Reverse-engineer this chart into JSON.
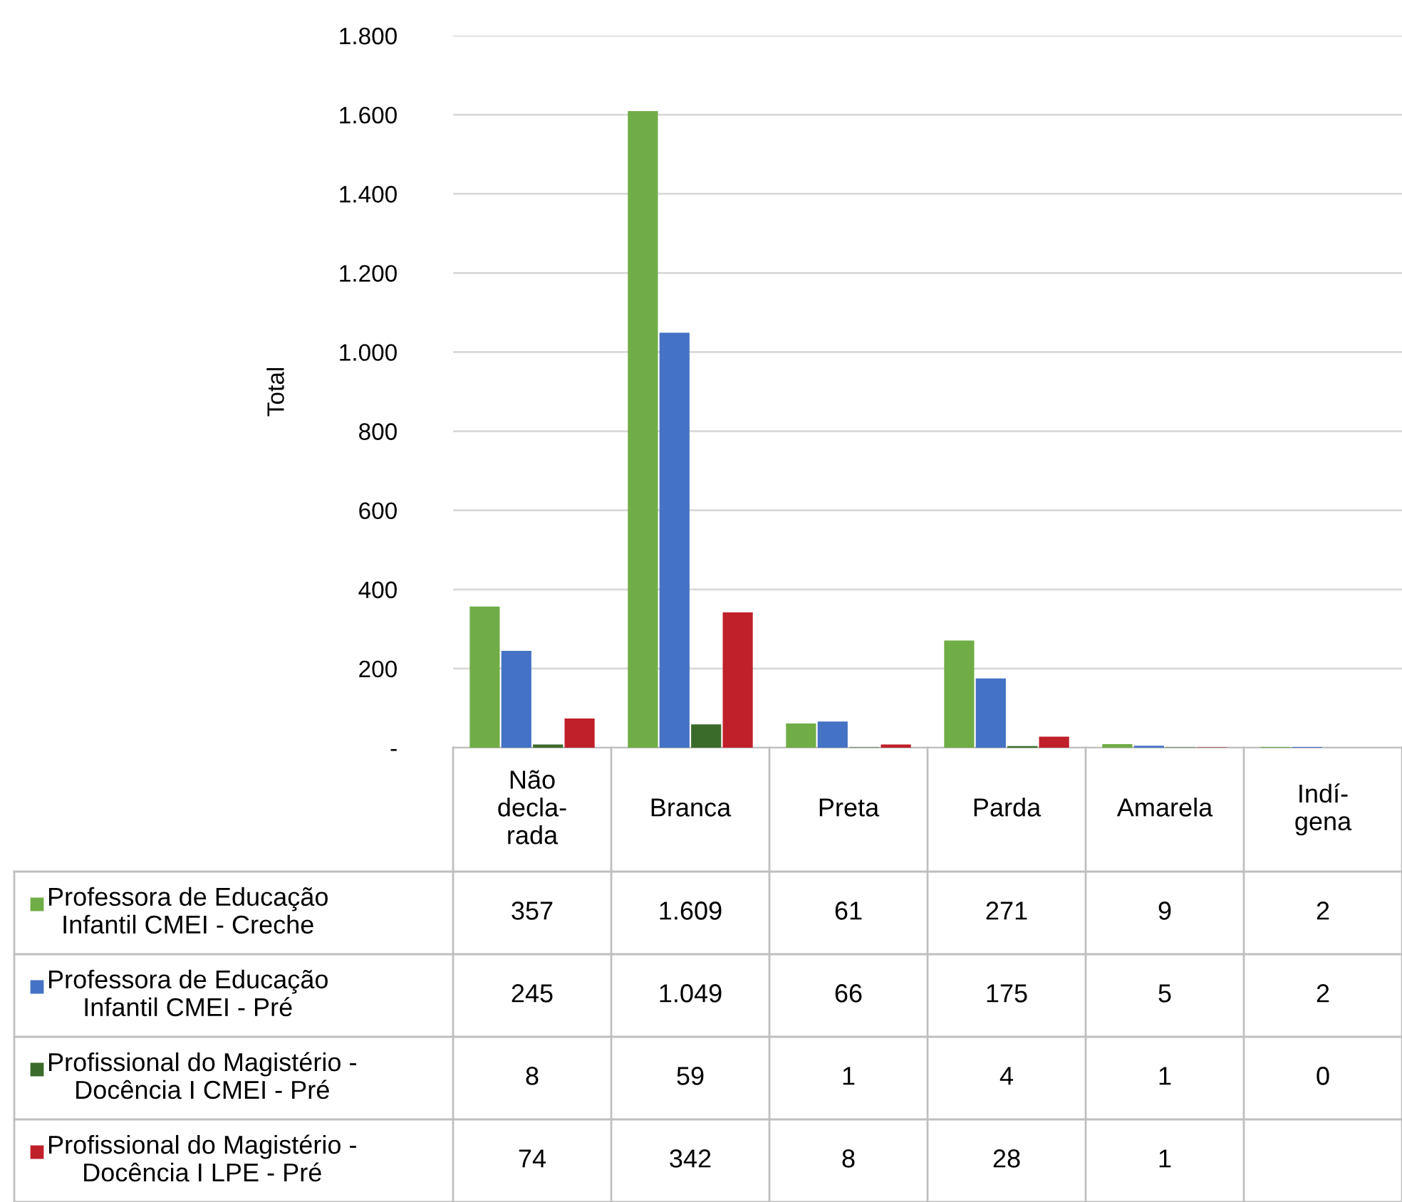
{
  "chart_data": {
    "type": "bar",
    "ylabel": "Total",
    "categories": [
      "Não\ndecla-\nrada",
      "Branca",
      "Preta",
      "Parda",
      "Amarela",
      "Indí-\ngena"
    ],
    "series": [
      {
        "name": "Professora de Educação\nInfantil CMEI - Creche",
        "color": "#70ad47",
        "values": [
          357,
          1609,
          61,
          271,
          9,
          2
        ],
        "value_labels": [
          "357",
          "1.609",
          "61",
          "271",
          "9",
          "2"
        ]
      },
      {
        "name": "Professora de Educação\nInfantil CMEI - Pré",
        "color": "#4472c4",
        "values": [
          245,
          1049,
          66,
          175,
          5,
          2
        ],
        "value_labels": [
          "245",
          "1.049",
          "66",
          "175",
          "5",
          "2"
        ]
      },
      {
        "name": "Profissional do Magistério -\nDocência I CMEI - Pré",
        "color": "#3b6b2a",
        "values": [
          8,
          59,
          1,
          4,
          1,
          0
        ],
        "value_labels": [
          "8",
          "59",
          "1",
          "4",
          "1",
          "0"
        ]
      },
      {
        "name": "Profissional do Magistério -\nDocência I LPE - Pré",
        "color": "#c0202a",
        "values": [
          74,
          342,
          8,
          28,
          1,
          null
        ],
        "value_labels": [
          "74",
          "342",
          "8",
          "28",
          "1",
          null
        ]
      }
    ],
    "ylim": [
      0,
      1800
    ],
    "yticks": [
      {
        "value": 0,
        "label": "-"
      },
      200,
      400,
      600,
      800,
      {
        "value": 1000,
        "label": "1.000"
      },
      {
        "value": 1200,
        "label": "1.200"
      },
      {
        "value": 1400,
        "label": "1.400"
      },
      {
        "value": 1600,
        "label": "1.600"
      },
      {
        "value": 1800,
        "label": "1.800"
      }
    ],
    "grid": "y",
    "legend": "bottom"
  }
}
